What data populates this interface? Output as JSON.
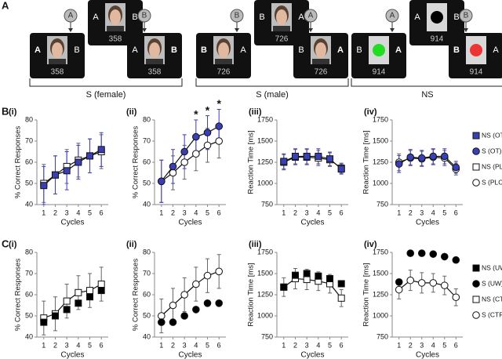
{
  "panel_letters": [
    "A",
    "B",
    "C"
  ],
  "panel_a": {
    "groups": [
      {
        "label": "S (female)",
        "cues": [
          "A",
          "B"
        ],
        "cards": [
          {
            "left": "A",
            "right": "B",
            "number": "358"
          },
          {
            "left": "A",
            "right": "B",
            "number": "358",
            "bold": "left"
          },
          {
            "left": "A",
            "right": "B",
            "number": "358",
            "bold": "right"
          }
        ]
      },
      {
        "label": "S (male)",
        "cues": [
          "B",
          "A"
        ],
        "cards": [
          {
            "left": "B",
            "right": "A",
            "number": "726"
          },
          {
            "left": "B",
            "right": "A",
            "number": "726",
            "bold": "left"
          },
          {
            "left": "B",
            "right": "A",
            "number": "726",
            "bold": "right"
          }
        ]
      },
      {
        "label": "NS",
        "cues": [
          "A",
          "B"
        ],
        "cards": [
          {
            "left": "A",
            "right": "B",
            "number": "914",
            "color": "#000000"
          },
          {
            "left": "B",
            "right": "A",
            "number": "914",
            "bold": "right",
            "color": "#22dd22"
          },
          {
            "left": "B",
            "right": "A",
            "number": "914",
            "bold": "left",
            "color": "#ee3333"
          }
        ]
      }
    ]
  },
  "chart_data": [
    {
      "type": "line",
      "title": "(i)",
      "xlabel": "Cycles",
      "ylabel": "% Correct Responses",
      "x": [
        1,
        2,
        3,
        4,
        5,
        6
      ],
      "xlim": [
        0.4,
        6.6
      ],
      "xticks": [
        1,
        2,
        3,
        4,
        5,
        6
      ],
      "ylim": [
        40,
        80
      ],
      "yticks": [
        40,
        50,
        60,
        70,
        80
      ],
      "series": [
        {
          "name": "NS (OT)",
          "marker": "square",
          "color": "#3b3fb5",
          "line": true,
          "values": [
            49,
            54,
            56,
            60,
            63,
            66
          ],
          "errors": [
            9,
            9,
            9,
            8,
            8,
            8
          ]
        },
        {
          "name": "NS (PLC)",
          "marker": "square",
          "color": "#ffffff",
          "line": true,
          "values": [
            50,
            54,
            58,
            61,
            63,
            65
          ],
          "errors": [
            9,
            9,
            8,
            8,
            8,
            8
          ]
        }
      ]
    },
    {
      "type": "line",
      "title": "(ii)",
      "xlabel": "Cycles",
      "ylabel": "% Correct Responses",
      "x": [
        1,
        2,
        3,
        4,
        5,
        6
      ],
      "xlim": [
        0.4,
        6.6
      ],
      "xticks": [
        1,
        2,
        3,
        4,
        5,
        6
      ],
      "ylim": [
        40,
        80
      ],
      "yticks": [
        40,
        50,
        60,
        70,
        80
      ],
      "annotations": [
        {
          "x": 4,
          "text": "*"
        },
        {
          "x": 5,
          "text": "*"
        },
        {
          "x": 6,
          "text": "*"
        }
      ],
      "series": [
        {
          "name": "S (OT)",
          "marker": "circle",
          "color": "#3b3fb5",
          "line": true,
          "values": [
            51,
            58,
            65,
            72,
            74,
            77
          ],
          "errors": [
            10,
            8,
            8,
            8,
            8,
            8
          ]
        },
        {
          "name": "S (PLC)",
          "marker": "circle",
          "color": "#ffffff",
          "line": true,
          "values": [
            51,
            55,
            60,
            64,
            68,
            70
          ],
          "errors": [
            10,
            8,
            8,
            8,
            8,
            8
          ]
        }
      ]
    },
    {
      "type": "line",
      "title": "(iii)",
      "xlabel": "Cycles",
      "ylabel": "Reaction Time [ms]",
      "x": [
        1,
        2,
        3,
        4,
        5,
        6
      ],
      "xlim": [
        0.4,
        6.6
      ],
      "xticks": [
        1,
        2,
        3,
        4,
        5,
        6
      ],
      "ylim": [
        750,
        1750
      ],
      "yticks": [
        750,
        1000,
        1250,
        1500,
        1750
      ],
      "series": [
        {
          "marker": "square",
          "color": "#3b3fb5",
          "line": true,
          "values": [
            1260,
            1320,
            1320,
            1320,
            1290,
            1170
          ],
          "errors": [
            90,
            90,
            90,
            90,
            80,
            60
          ]
        },
        {
          "marker": "square",
          "color": "#ffffff",
          "line": true,
          "values": [
            1250,
            1310,
            1310,
            1300,
            1280,
            1180
          ],
          "errors": [
            90,
            90,
            90,
            90,
            80,
            60
          ]
        }
      ]
    },
    {
      "type": "line",
      "title": "(iv)",
      "xlabel": "Cycles",
      "ylabel": "Reaction Time [ms]",
      "x": [
        1,
        2,
        3,
        4,
        5,
        6
      ],
      "xlim": [
        0.4,
        6.6
      ],
      "xticks": [
        1,
        2,
        3,
        4,
        5,
        6
      ],
      "ylim": [
        750,
        1750
      ],
      "yticks": [
        750,
        1000,
        1250,
        1500,
        1750
      ],
      "series": [
        {
          "marker": "circle",
          "color": "#3b3fb5",
          "line": true,
          "values": [
            1230,
            1310,
            1300,
            1320,
            1320,
            1190
          ],
          "errors": [
            100,
            90,
            90,
            90,
            90,
            70
          ]
        },
        {
          "marker": "circle",
          "color": "#ffffff",
          "line": true,
          "values": [
            1250,
            1300,
            1290,
            1310,
            1300,
            1170
          ],
          "errors": [
            100,
            90,
            90,
            90,
            90,
            70
          ]
        }
      ]
    },
    {
      "type": "line",
      "title": "(i)",
      "xlabel": "Cycles",
      "ylabel": "% Correct Responses",
      "x": [
        1,
        2,
        3,
        4,
        5,
        6
      ],
      "xlim": [
        0.4,
        6.6
      ],
      "xticks": [
        1,
        2,
        3,
        4,
        5,
        6
      ],
      "ylim": [
        40,
        80
      ],
      "yticks": [
        40,
        50,
        60,
        70,
        80
      ],
      "series": [
        {
          "name": "NS (UW)",
          "marker": "square",
          "color": "#000000",
          "line": false,
          "values": [
            47,
            50,
            53,
            56,
            59,
            62
          ]
        },
        {
          "name": "NS (CTRL)",
          "marker": "square",
          "color": "#ffffff",
          "line": true,
          "values": [
            49,
            51,
            57,
            61,
            62,
            65
          ],
          "errors": [
            8,
            8,
            8,
            8,
            8,
            8
          ]
        }
      ]
    },
    {
      "type": "line",
      "title": "(ii)",
      "xlabel": "Cycles",
      "ylabel": "% Correct Responses",
      "x": [
        1,
        2,
        3,
        4,
        5,
        6
      ],
      "xlim": [
        0.4,
        6.6
      ],
      "xticks": [
        1,
        2,
        3,
        4,
        5,
        6
      ],
      "ylim": [
        40,
        80
      ],
      "yticks": [
        40,
        50,
        60,
        70,
        80
      ],
      "series": [
        {
          "name": "S (UW)",
          "marker": "circle",
          "color": "#000000",
          "line": false,
          "values": [
            47,
            47,
            50,
            53,
            56,
            56
          ]
        },
        {
          "name": "S (CTRL)",
          "marker": "circle",
          "color": "#ffffff",
          "line": true,
          "values": [
            50,
            55,
            60,
            65,
            69,
            71
          ],
          "errors": [
            8,
            8,
            8,
            8,
            8,
            8
          ]
        }
      ]
    },
    {
      "type": "line",
      "title": "(iii)",
      "xlabel": "Cycles",
      "ylabel": "Reaction Time [ms]",
      "x": [
        1,
        2,
        3,
        4,
        5,
        6
      ],
      "xlim": [
        0.4,
        6.6
      ],
      "xticks": [
        1,
        2,
        3,
        4,
        5,
        6
      ],
      "ylim": [
        750,
        1750
      ],
      "yticks": [
        750,
        1000,
        1250,
        1500,
        1750
      ],
      "series": [
        {
          "marker": "square",
          "color": "#000000",
          "line": false,
          "values": [
            1340,
            1480,
            1500,
            1470,
            1440,
            1380
          ]
        },
        {
          "marker": "square",
          "color": "#ffffff",
          "line": true,
          "values": [
            1340,
            1440,
            1430,
            1410,
            1380,
            1210
          ],
          "errors": [
            110,
            120,
            120,
            110,
            110,
            100
          ]
        }
      ]
    },
    {
      "type": "line",
      "title": "(iv)",
      "xlabel": "Cycles",
      "ylabel": "Reaction Time [ms]",
      "x": [
        1,
        2,
        3,
        4,
        5,
        6
      ],
      "xlim": [
        0.4,
        6.6
      ],
      "xticks": [
        1,
        2,
        3,
        4,
        5,
        6
      ],
      "ylim": [
        750,
        1750
      ],
      "yticks": [
        750,
        1000,
        1250,
        1500,
        1750
      ],
      "series": [
        {
          "marker": "circle",
          "color": "#000000",
          "line": false,
          "values": [
            1400,
            1740,
            1740,
            1730,
            1700,
            1660
          ]
        },
        {
          "marker": "circle",
          "color": "#ffffff",
          "line": true,
          "values": [
            1310,
            1420,
            1390,
            1390,
            1360,
            1220
          ],
          "errors": [
            110,
            120,
            120,
            110,
            110,
            100
          ]
        }
      ]
    }
  ]
}
